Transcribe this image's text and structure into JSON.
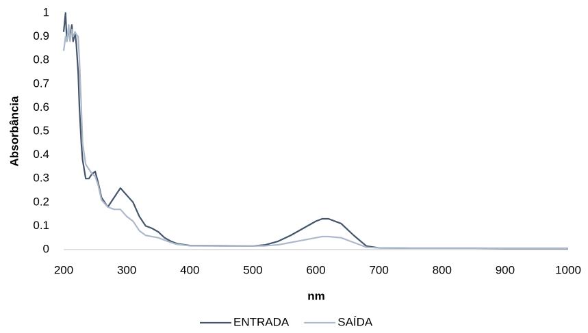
{
  "chart_data": {
    "type": "line",
    "x_label": "nm",
    "y_label": "Absorbância",
    "x": [
      200,
      203,
      205,
      208,
      210,
      213,
      215,
      218,
      220,
      223,
      225,
      228,
      230,
      235,
      240,
      245,
      250,
      255,
      260,
      270,
      280,
      290,
      300,
      310,
      320,
      330,
      340,
      350,
      360,
      370,
      380,
      400,
      450,
      500,
      520,
      540,
      560,
      580,
      600,
      610,
      620,
      640,
      660,
      680,
      700,
      750,
      800,
      850,
      900,
      950,
      1000
    ],
    "series": [
      {
        "name": "ENTRADA",
        "color": "#44546a",
        "values": [
          0.92,
          1.0,
          0.88,
          0.93,
          0.9,
          0.95,
          0.88,
          0.92,
          0.87,
          0.75,
          0.6,
          0.45,
          0.38,
          0.3,
          0.3,
          0.32,
          0.33,
          0.28,
          0.22,
          0.18,
          0.22,
          0.26,
          0.23,
          0.2,
          0.14,
          0.1,
          0.09,
          0.075,
          0.05,
          0.035,
          0.025,
          0.017,
          0.016,
          0.015,
          0.02,
          0.035,
          0.06,
          0.09,
          0.12,
          0.13,
          0.13,
          0.11,
          0.06,
          0.015,
          0.007,
          0.006,
          0.006,
          0.006,
          0.005,
          0.005,
          0.005
        ]
      },
      {
        "name": "SAÍDA",
        "color": "#acb9ca",
        "values": [
          0.84,
          0.9,
          0.88,
          0.95,
          0.88,
          0.93,
          0.9,
          0.92,
          0.91,
          0.9,
          0.8,
          0.6,
          0.45,
          0.36,
          0.34,
          0.32,
          0.31,
          0.27,
          0.21,
          0.18,
          0.17,
          0.17,
          0.14,
          0.12,
          0.08,
          0.06,
          0.055,
          0.05,
          0.04,
          0.03,
          0.022,
          0.016,
          0.015,
          0.015,
          0.016,
          0.02,
          0.03,
          0.04,
          0.05,
          0.055,
          0.055,
          0.05,
          0.03,
          0.01,
          0.007,
          0.006,
          0.006,
          0.006,
          0.006,
          0.006,
          0.006
        ]
      }
    ],
    "xlim": [
      200,
      1000
    ],
    "xticks": [
      200,
      300,
      400,
      500,
      600,
      700,
      800,
      900,
      1000
    ],
    "ylim": [
      0,
      1
    ],
    "yticks": [
      0,
      0.1,
      0.2,
      0.3,
      0.4,
      0.5,
      0.6,
      0.7,
      0.8,
      0.9,
      1
    ],
    "legend": "bottom"
  }
}
